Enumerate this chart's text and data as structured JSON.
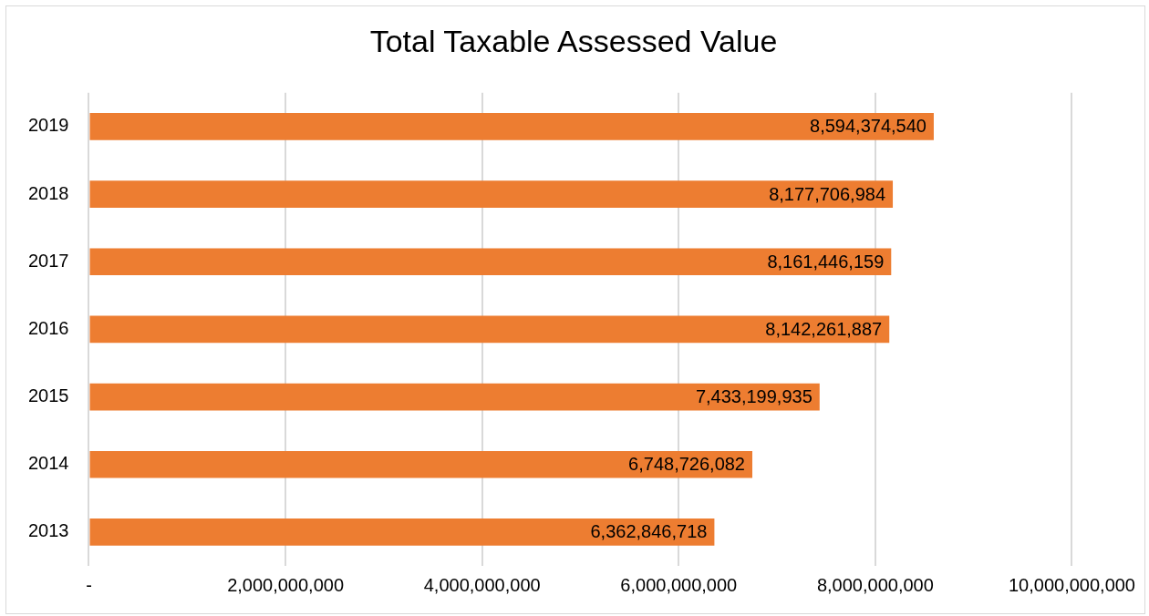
{
  "chart_data": {
    "type": "bar",
    "orientation": "horizontal",
    "title": "Total Taxable Assessed Value",
    "categories": [
      "2019",
      "2018",
      "2017",
      "2016",
      "2015",
      "2014",
      "2013"
    ],
    "values": [
      8594374540,
      8177706984,
      8161446159,
      8142261887,
      7433199935,
      6748726082,
      6362846718
    ],
    "value_labels": [
      "8,594,374,540",
      "8,177,706,984",
      "8,161,446,159",
      "8,142,261,887",
      "7,433,199,935",
      "6,748,726,082",
      "6,362,846,718"
    ],
    "color": "#ed7d31",
    "xlim": [
      0,
      10000000000
    ],
    "xticks": [
      {
        "value": 0,
        "label": "-"
      },
      {
        "value": 2000000000,
        "label": "2,000,000,000"
      },
      {
        "value": 4000000000,
        "label": "4,000,000,000"
      },
      {
        "value": 6000000000,
        "label": "6,000,000,000"
      },
      {
        "value": 8000000000,
        "label": "8,000,000,000"
      },
      {
        "value": 10000000000,
        "label": "10,000,000,000"
      }
    ],
    "grid": "x",
    "legend": false
  }
}
